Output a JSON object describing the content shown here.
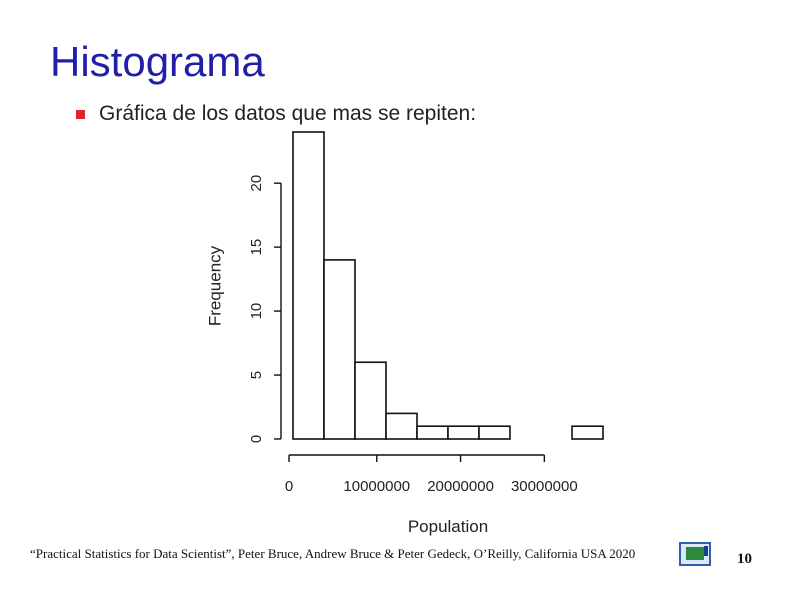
{
  "slide": {
    "title": "Histograma",
    "bullet": "Gráfica de los datos que mas se repiten:",
    "citation": "“Practical Statistics for Data Scientist”, Peter Bruce, Andrew Bruce & Peter Gedeck, O’Reilly, California USA 2020",
    "page_number": "10",
    "accent_color": "#1f1fa8",
    "bullet_color": "#e0242e",
    "nav_icon": "slide-navigation-icon"
  },
  "chart_data": {
    "type": "bar",
    "title": "",
    "xlabel": "Population",
    "ylabel": "Frequency",
    "bin_edges": [
      0,
      3700000,
      7400000,
      11100000,
      14800000,
      18500000,
      22200000,
      25900000,
      29600000,
      33300000,
      37000000
    ],
    "values": [
      24,
      14,
      6,
      2,
      1,
      1,
      1,
      0,
      0,
      1
    ],
    "xlim": [
      0,
      37000000
    ],
    "ylim": [
      0,
      24
    ],
    "x_ticks": [
      0,
      10000000,
      20000000,
      30000000
    ],
    "x_tick_labels": [
      "0",
      "10000000",
      "20000000",
      "30000000"
    ],
    "y_ticks": [
      0,
      5,
      10,
      15,
      20
    ],
    "y_tick_labels": [
      "0",
      "5",
      "10",
      "15",
      "20"
    ],
    "grid": false
  }
}
